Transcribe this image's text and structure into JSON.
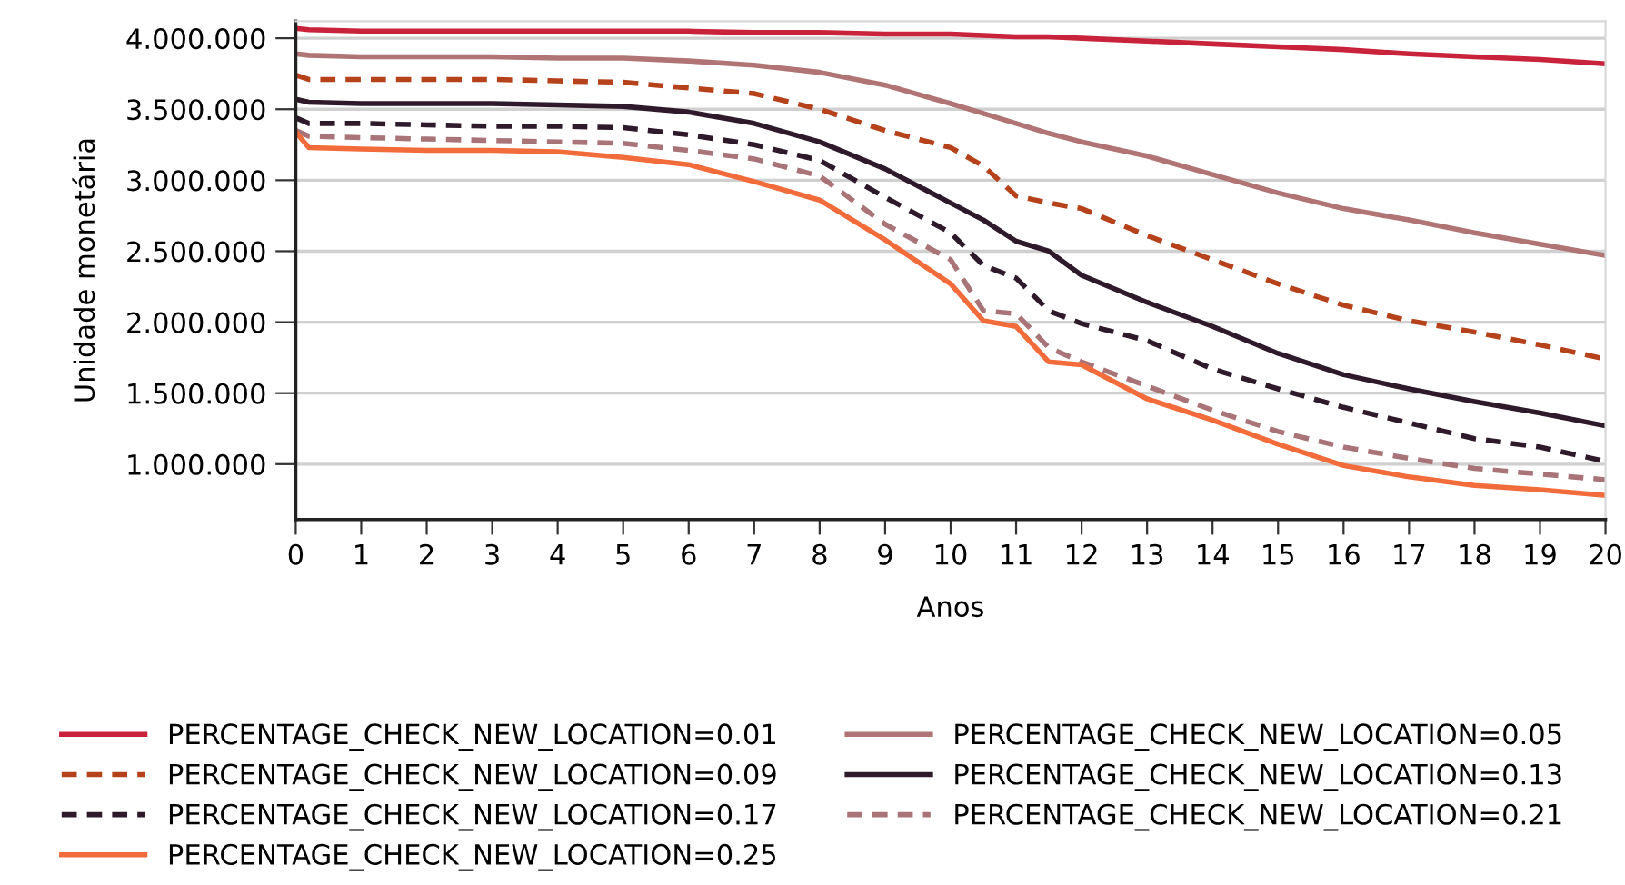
{
  "chart_data": {
    "type": "line",
    "xlabel": "Anos",
    "ylabel": "Unidade monetária",
    "x": [
      0,
      0.2,
      1,
      2,
      3,
      4,
      5,
      6,
      7,
      8,
      9,
      10,
      10.5,
      11,
      11.5,
      12,
      13,
      14,
      15,
      16,
      17,
      18,
      19,
      20
    ],
    "series": [
      {
        "name": "PERCENTAGE_CHECK_NEW_LOCATION=0.01",
        "color": "#c8233a",
        "line_style": "solid",
        "values": [
          4070000,
          4060000,
          4050000,
          4050000,
          4050000,
          4050000,
          4050000,
          4050000,
          4040000,
          4040000,
          4030000,
          4030000,
          4020000,
          4010000,
          4010000,
          4000000,
          3980000,
          3960000,
          3940000,
          3920000,
          3890000,
          3870000,
          3850000,
          3820000
        ]
      },
      {
        "name": "PERCENTAGE_CHECK_NEW_LOCATION=0.05",
        "color": "#b07474",
        "line_style": "solid",
        "values": [
          3890000,
          3880000,
          3870000,
          3870000,
          3870000,
          3860000,
          3860000,
          3840000,
          3810000,
          3760000,
          3670000,
          3540000,
          3470000,
          3400000,
          3330000,
          3270000,
          3170000,
          3040000,
          2910000,
          2800000,
          2720000,
          2630000,
          2550000,
          2470000
        ]
      },
      {
        "name": "PERCENTAGE_CHECK_NEW_LOCATION=0.09",
        "color": "#b5421a",
        "line_style": "dashed",
        "values": [
          3740000,
          3710000,
          3710000,
          3710000,
          3710000,
          3700000,
          3690000,
          3650000,
          3610000,
          3500000,
          3350000,
          3230000,
          3100000,
          2890000,
          2840000,
          2800000,
          2610000,
          2440000,
          2270000,
          2120000,
          2010000,
          1930000,
          1840000,
          1740000
        ]
      },
      {
        "name": "PERCENTAGE_CHECK_NEW_LOCATION=0.13",
        "color": "#2e1a2a",
        "line_style": "solid",
        "values": [
          3570000,
          3550000,
          3540000,
          3540000,
          3540000,
          3530000,
          3520000,
          3480000,
          3400000,
          3270000,
          3080000,
          2840000,
          2720000,
          2570000,
          2500000,
          2330000,
          2140000,
          1970000,
          1780000,
          1630000,
          1530000,
          1440000,
          1360000,
          1270000
        ]
      },
      {
        "name": "PERCENTAGE_CHECK_NEW_LOCATION=0.17",
        "color": "#2e1a2a",
        "line_style": "dashed",
        "values": [
          3440000,
          3400000,
          3400000,
          3390000,
          3380000,
          3380000,
          3370000,
          3320000,
          3250000,
          3140000,
          2880000,
          2630000,
          2400000,
          2310000,
          2080000,
          1990000,
          1870000,
          1670000,
          1530000,
          1400000,
          1290000,
          1180000,
          1120000,
          1020000
        ]
      },
      {
        "name": "PERCENTAGE_CHECK_NEW_LOCATION=0.21",
        "color": "#a87478",
        "line_style": "dashed",
        "values": [
          3350000,
          3310000,
          3300000,
          3290000,
          3280000,
          3270000,
          3260000,
          3210000,
          3150000,
          3030000,
          2690000,
          2440000,
          2080000,
          2060000,
          1820000,
          1720000,
          1550000,
          1380000,
          1230000,
          1120000,
          1040000,
          970000,
          930000,
          890000
        ]
      },
      {
        "name": "PERCENTAGE_CHECK_NEW_LOCATION=0.25",
        "color": "#f26b3a",
        "line_style": "solid",
        "values": [
          3340000,
          3230000,
          3220000,
          3210000,
          3210000,
          3200000,
          3160000,
          3110000,
          2990000,
          2860000,
          2580000,
          2270000,
          2010000,
          1970000,
          1720000,
          1700000,
          1460000,
          1310000,
          1140000,
          990000,
          910000,
          850000,
          820000,
          780000
        ]
      }
    ],
    "xlim": [
      0,
      20
    ],
    "xticks": [
      0,
      1,
      2,
      3,
      4,
      5,
      6,
      7,
      8,
      9,
      10,
      11,
      12,
      13,
      14,
      15,
      16,
      17,
      18,
      19,
      20
    ],
    "ylim": [
      610000,
      4120000
    ],
    "yticks": [
      {
        "value": 1000000,
        "label": "1.000.000"
      },
      {
        "value": 1500000,
        "label": "1.500.000"
      },
      {
        "value": 2000000,
        "label": "2.000.000"
      },
      {
        "value": 2500000,
        "label": "2.500.000"
      },
      {
        "value": 3000000,
        "label": "3.000.000"
      },
      {
        "value": 3500000,
        "label": "3.500.000"
      },
      {
        "value": 4000000,
        "label": "4.000.000"
      }
    ],
    "grid": "y",
    "legend": "bottom",
    "marker": "none"
  }
}
